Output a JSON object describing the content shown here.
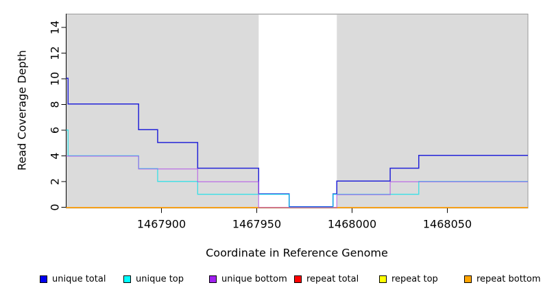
{
  "chart_data": {
    "type": "line",
    "style": "step",
    "title": "",
    "xlabel": "Coordinate in Reference Genome",
    "ylabel": "Read Coverage Depth",
    "xlim": [
      1467850,
      1468092
    ],
    "ylim": [
      0,
      15
    ],
    "x_ticks": [
      1467900,
      1467950,
      1468000,
      1468050
    ],
    "y_ticks": [
      0,
      2,
      4,
      6,
      8,
      10,
      12,
      14
    ],
    "grid": false,
    "legend_position": "bottom",
    "plot_background_color": "#dbdbdb",
    "plot_border_color": "#999999",
    "masked_region": {
      "start": 1467951,
      "end": 1467992,
      "color": "#ffffff"
    },
    "series": [
      {
        "name": "unique total",
        "color": "#0000f0",
        "steps": [
          [
            1467850,
            10
          ],
          [
            1467851,
            8
          ],
          [
            1467888,
            6
          ],
          [
            1467898,
            5
          ],
          [
            1467919,
            3
          ],
          [
            1467951,
            1
          ],
          [
            1467967,
            0
          ],
          [
            1467990,
            1
          ],
          [
            1467992,
            2
          ],
          [
            1468020,
            3
          ],
          [
            1468035,
            4
          ]
        ]
      },
      {
        "name": "unique top",
        "color": "#00ffff",
        "steps": [
          [
            1467850,
            6
          ],
          [
            1467851,
            4
          ],
          [
            1467888,
            3
          ],
          [
            1467898,
            2
          ],
          [
            1467919,
            1
          ],
          [
            1467967,
            0
          ],
          [
            1467990,
            1
          ],
          [
            1468035,
            2
          ]
        ]
      },
      {
        "name": "unique bottom",
        "color": "#a020f0",
        "steps": [
          [
            1467850,
            4
          ],
          [
            1467888,
            3
          ],
          [
            1467919,
            2
          ],
          [
            1467951,
            0
          ],
          [
            1467992,
            1
          ],
          [
            1468020,
            2
          ]
        ]
      },
      {
        "name": "repeat total",
        "color": "#ff0000",
        "steps": [
          [
            1467850,
            0
          ]
        ]
      },
      {
        "name": "repeat top",
        "color": "#ffff00",
        "steps": [
          [
            1467850,
            0
          ]
        ]
      },
      {
        "name": "repeat bottom",
        "color": "#ffa500",
        "steps": [
          [
            1467850,
            0
          ]
        ]
      }
    ]
  }
}
